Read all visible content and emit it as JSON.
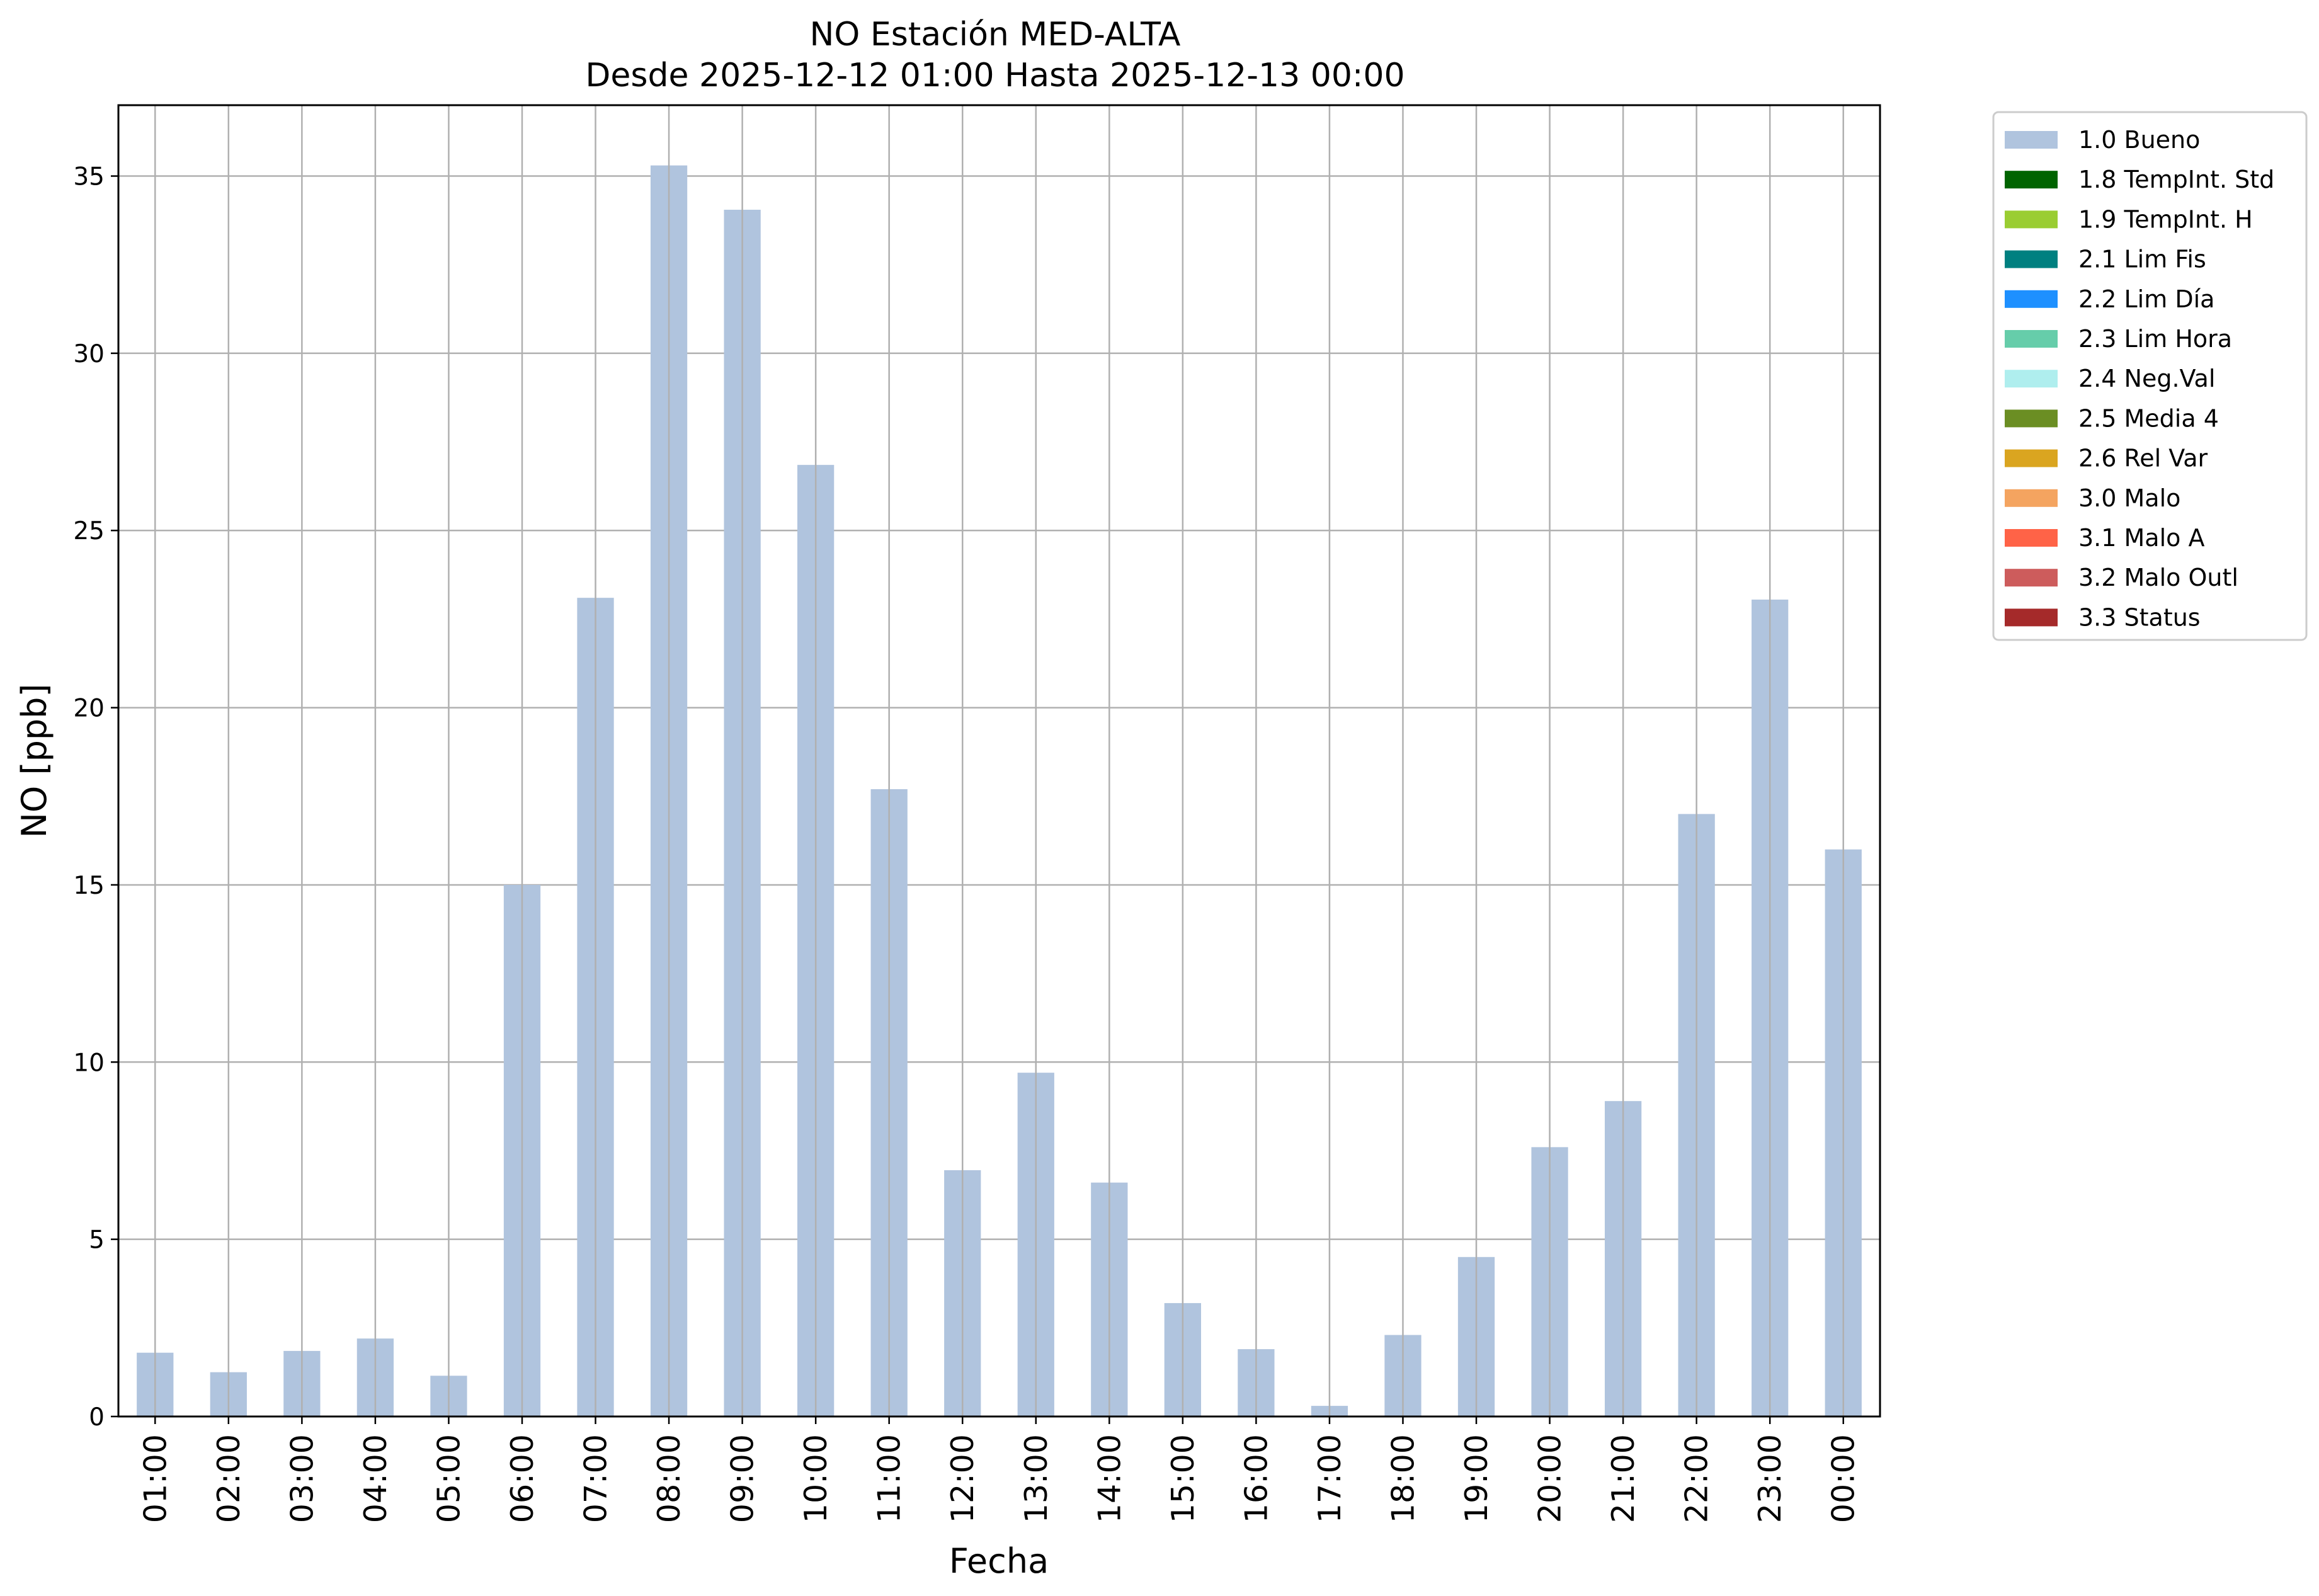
{
  "chart_data": {
    "type": "bar",
    "title_line1": "NO Estación MED-ALTA",
    "title_line2": "Desde 2025-12-12 01:00 Hasta 2025-12-13 00:00",
    "xlabel": "Fecha",
    "ylabel": "NO [ppb]",
    "ylim": [
      0,
      37
    ],
    "yticks": [
      0,
      5,
      10,
      15,
      20,
      25,
      30,
      35
    ],
    "grid": true,
    "legend_position": "outside-top-right",
    "categories": [
      "01:00",
      "02:00",
      "03:00",
      "04:00",
      "05:00",
      "06:00",
      "07:00",
      "08:00",
      "09:00",
      "10:00",
      "11:00",
      "12:00",
      "13:00",
      "14:00",
      "15:00",
      "16:00",
      "17:00",
      "18:00",
      "19:00",
      "20:00",
      "21:00",
      "22:00",
      "23:00",
      "00:00"
    ],
    "series": [
      {
        "name": "1.0 Bueno",
        "color": "#b0c4de",
        "values": [
          1.8,
          1.25,
          1.85,
          2.2,
          1.15,
          15.0,
          23.1,
          35.3,
          34.05,
          26.85,
          17.7,
          6.95,
          9.7,
          6.6,
          3.2,
          1.9,
          0.3,
          2.3,
          4.5,
          7.6,
          8.9,
          17.0,
          23.05,
          16.0
        ]
      }
    ],
    "legend": [
      {
        "label": "1.0 Bueno",
        "color": "#b0c4de"
      },
      {
        "label": "1.8 TempInt. Std",
        "color": "#006400"
      },
      {
        "label": "1.9 TempInt. H",
        "color": "#9acd32"
      },
      {
        "label": "2.1 Lim Fis",
        "color": "#008080"
      },
      {
        "label": "2.2 Lim Día",
        "color": "#1e90ff"
      },
      {
        "label": "2.3 Lim Hora",
        "color": "#66cdaa"
      },
      {
        "label": "2.4 Neg.Val",
        "color": "#afeeee"
      },
      {
        "label": "2.5 Media 4",
        "color": "#6b8e23"
      },
      {
        "label": "2.6 Rel Var",
        "color": "#daa520"
      },
      {
        "label": "3.0 Malo",
        "color": "#f4a460"
      },
      {
        "label": "3.1 Malo A",
        "color": "#ff6347"
      },
      {
        "label": "3.2 Malo Outl",
        "color": "#cd5c5c"
      },
      {
        "label": "3.3 Status",
        "color": "#a52a2a"
      }
    ]
  }
}
